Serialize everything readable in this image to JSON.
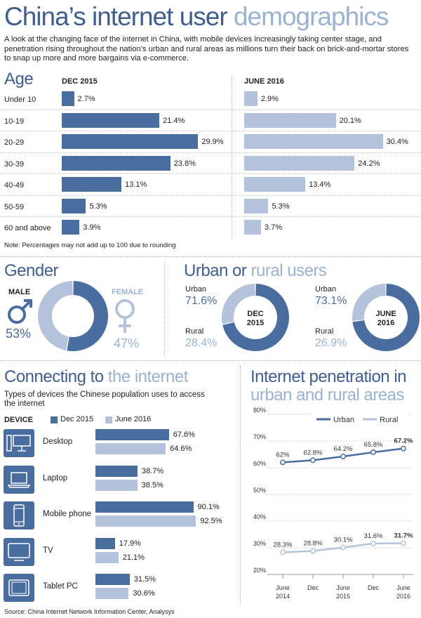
{
  "header": {
    "title_dark": "China’s internet user",
    "title_light": "demographics",
    "intro": "A look at the changing face of the internet in China, with mobile devices increasingly taking center stage, and penetration rising throughout the nation’s urban and rural areas as millions turn their back on brick-and-mortar stores to snap up more and more bargains via e-commerce."
  },
  "age": {
    "title": "Age",
    "col_left": "DEC 2015",
    "col_right": "JUNE 2016",
    "note": "Note: Percentages may not add up to 100 due to rounding"
  },
  "gender": {
    "title": "Gender",
    "male_label": "MALE",
    "male_value": "53%",
    "female_label": "FEMALE",
    "female_value": "47%"
  },
  "urban_rural": {
    "title_dark": "Urban or",
    "title_light": "rural users",
    "left": {
      "urban_label": "Urban",
      "urban_value": "71.6%",
      "rural_label": "Rural",
      "rural_value": "28.4%",
      "center_line1": "DEC",
      "center_line2": "2015"
    },
    "right": {
      "urban_label": "Urban",
      "urban_value": "73.1%",
      "rural_label": "Rural",
      "rural_value": "26.9%",
      "center_line1": "JUNE",
      "center_line2": "2016"
    }
  },
  "devices": {
    "title_dark": "Connecting to",
    "title_light": "the internet",
    "subtitle": "Types of devices the Chinese population uses to access the internet",
    "device_header": "DEVICE",
    "legend_dark": "Dec 2015",
    "legend_light": "June 2016"
  },
  "penetration": {
    "title_line1": "Internet penetration in",
    "title_line2": "urban and rural areas",
    "legend_urban": "Urban",
    "legend_rural": "Rural"
  },
  "source": "Source: China Internet Network Information Center, Analysys",
  "colors": {
    "dark": "#4a6d9f",
    "light": "#b4c3db",
    "title_dark": "#3e5f8f",
    "title_light": "#9cb2d3"
  },
  "chart_data": [
    {
      "type": "bar",
      "title": "Age",
      "categories": [
        "Under 10",
        "10-19",
        "20-29",
        "30-39",
        "40-49",
        "50-59",
        "60 and above"
      ],
      "series": [
        {
          "name": "DEC 2015",
          "values": [
            2.7,
            21.4,
            29.9,
            23.8,
            13.1,
            5.3,
            3.9
          ],
          "labels": [
            "2.7%",
            "21.4%",
            "29.9%",
            "23.8%",
            "13.1%",
            "5.3%",
            "3.9%"
          ]
        },
        {
          "name": "JUNE 2016",
          "values": [
            2.9,
            20.1,
            30.4,
            24.2,
            13.4,
            5.3,
            3.7
          ],
          "labels": [
            "2.9%",
            "20.1%",
            "30.4%",
            "24.2%",
            "13.4%",
            "5.3%",
            "3.7%"
          ]
        }
      ]
    },
    {
      "type": "pie",
      "title": "Gender",
      "categories": [
        "MALE",
        "FEMALE"
      ],
      "values": [
        53,
        47
      ]
    },
    {
      "type": "pie",
      "categories": [
        "Urban",
        "Rural"
      ],
      "series": [
        {
          "name": "DEC 2015",
          "values": [
            71.6,
            28.4
          ]
        },
        {
          "name": "JUNE 2016",
          "values": [
            73.1,
            26.9
          ]
        }
      ]
    },
    {
      "type": "bar",
      "title": "Connecting to the internet",
      "categories": [
        "Desktop",
        "Laptop",
        "Mobile phone",
        "TV",
        "Tablet PC"
      ],
      "icons": [
        "desktop-icon",
        "laptop-icon",
        "mobile-phone-icon",
        "tv-icon",
        "tablet-icon"
      ],
      "series": [
        {
          "name": "Dec 2015",
          "values": [
            67.6,
            38.7,
            90.1,
            17.9,
            31.5
          ],
          "labels": [
            "67.6%",
            "38.7%",
            "90.1%",
            "17.9%",
            "31.5%"
          ]
        },
        {
          "name": "June 2016",
          "values": [
            64.6,
            38.5,
            92.5,
            21.1,
            30.6
          ],
          "labels": [
            "64.6%",
            "38.5%",
            "92.5%",
            "21.1%",
            "30.6%"
          ]
        }
      ]
    },
    {
      "type": "line",
      "title": "Internet penetration in urban and rural areas",
      "x": [
        "June 2014",
        "Dec",
        "June 2015",
        "Dec",
        "June 2016"
      ],
      "x_tick_lines": [
        [
          "June",
          "2014"
        ],
        [
          "Dec"
        ],
        [
          "June",
          "2015"
        ],
        [
          "Dec"
        ],
        [
          "June",
          "2016"
        ]
      ],
      "y_ticks": [
        "80%",
        "70%",
        "60%",
        "50%",
        "40%",
        "30%",
        "20%"
      ],
      "ylim": [
        20,
        80
      ],
      "grid": true,
      "legend": "top",
      "series": [
        {
          "name": "Urban",
          "values": [
            62,
            62.8,
            64.2,
            65.8,
            67.2
          ],
          "labels": [
            "62%",
            "62.8%",
            "64.2%",
            "65.8%",
            "67.2%"
          ]
        },
        {
          "name": "Rural",
          "values": [
            28.3,
            28.8,
            30.1,
            31.6,
            31.7
          ],
          "labels": [
            "28.3%",
            "28.8%",
            "30.1%",
            "31.6%",
            "31.7%"
          ]
        }
      ]
    }
  ]
}
